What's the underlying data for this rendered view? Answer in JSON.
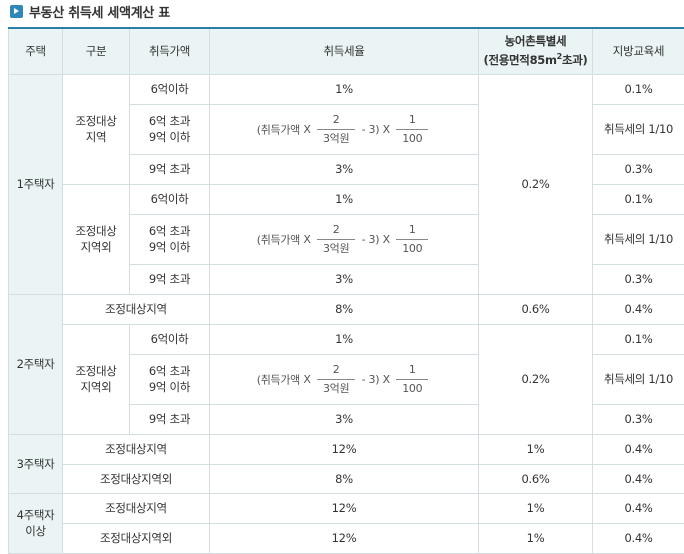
{
  "title": "부동산 취득세 세액계산 표",
  "headers": {
    "house": "주택",
    "type": "구분",
    "price": "취득가액",
    "rate": "취득세율",
    "agri_line1": "농어촌특별세",
    "agri_line2_pre": "(전용면적85m",
    "agri_sup": "2",
    "agri_line2_post": "초과)",
    "edu": "지방교육세"
  },
  "formula": {
    "prefix": "(취득가액",
    "times": "X",
    "num1": "2",
    "den1": "3억원",
    "minus": "- 3)",
    "num2": "1",
    "den2": "100"
  },
  "labels": {
    "h1": "1주택자",
    "h2": "2주택자",
    "h3": "3주택자",
    "h4_line1": "4주택자",
    "h4_line2": "이상",
    "adj_line1": "조정대상",
    "adj_line2": "지역",
    "nonadj_line2": "지역외",
    "adj_full": "조정대상지역",
    "nonadj_full": "조정대상지역외",
    "p1": "6억이하",
    "p2_line1": "6억 초과",
    "p2_line2": "9억 이하",
    "p3": "9억 초과"
  },
  "values": {
    "r1": "1%",
    "r3": "3%",
    "r8": "8%",
    "r12": "12%",
    "a02": "0.2%",
    "a06": "0.6%",
    "a1": "1%",
    "e01": "0.1%",
    "e_frac": "취득세의 1/10",
    "e03": "0.3%",
    "e04": "0.4%"
  }
}
